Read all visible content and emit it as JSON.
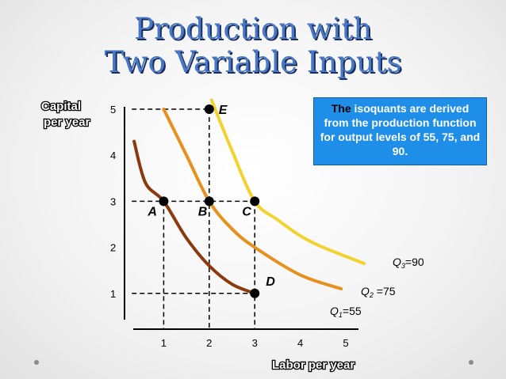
{
  "slide": {
    "title_line1": "Production with",
    "title_line2": "Two Variable Inputs",
    "note_lead": "The",
    "note_rest": " isoquants are derived from the production function for output levels of 55, 75, and 90."
  },
  "chart_data": {
    "type": "line",
    "title": "Production with Two Variable Inputs",
    "xlabel": "Labor per year",
    "ylabel_line1": "Capital",
    "ylabel_line2": "per year",
    "xlim": [
      0,
      5
    ],
    "ylim": [
      0,
      5
    ],
    "xticks": [
      1,
      2,
      3,
      4,
      5
    ],
    "yticks": [
      1,
      2,
      3,
      4,
      5
    ],
    "grid": false,
    "series": [
      {
        "label_q": "Q",
        "label_sub": "1",
        "label_val": "=55",
        "color": "#8B3A0E",
        "points": [
          [
            0.35,
            4.3
          ],
          [
            0.6,
            3.4
          ],
          [
            1,
            3
          ],
          [
            1.5,
            2.2
          ],
          [
            2,
            1.6
          ],
          [
            2.5,
            1.2
          ],
          [
            3,
            1
          ]
        ]
      },
      {
        "label_q": "Q",
        "label_sub": "2",
        "label_val": " =75",
        "color": "#E8901E",
        "points": [
          [
            1,
            5
          ],
          [
            1.5,
            4.0
          ],
          [
            2,
            3
          ],
          [
            2.5,
            2.4
          ],
          [
            3,
            2.0
          ],
          [
            4,
            1.4
          ],
          [
            4.9,
            1.1
          ]
        ]
      },
      {
        "label_q": "Q",
        "label_sub": "3",
        "label_val": "=90",
        "color": "#F2D22E",
        "points": [
          [
            2.05,
            5.2
          ],
          [
            2.5,
            4.1
          ],
          [
            3,
            3
          ],
          [
            3.5,
            2.6
          ],
          [
            4,
            2.25
          ],
          [
            4.5,
            2.0
          ],
          [
            5.4,
            1.65
          ]
        ]
      }
    ],
    "points": [
      {
        "label": "A",
        "x": 1,
        "y": 3
      },
      {
        "label": "B",
        "x": 2,
        "y": 3
      },
      {
        "label": "C",
        "x": 3,
        "y": 3
      },
      {
        "label": "D",
        "x": 3,
        "y": 1
      },
      {
        "label": "E",
        "x": 2,
        "y": 5
      }
    ]
  }
}
